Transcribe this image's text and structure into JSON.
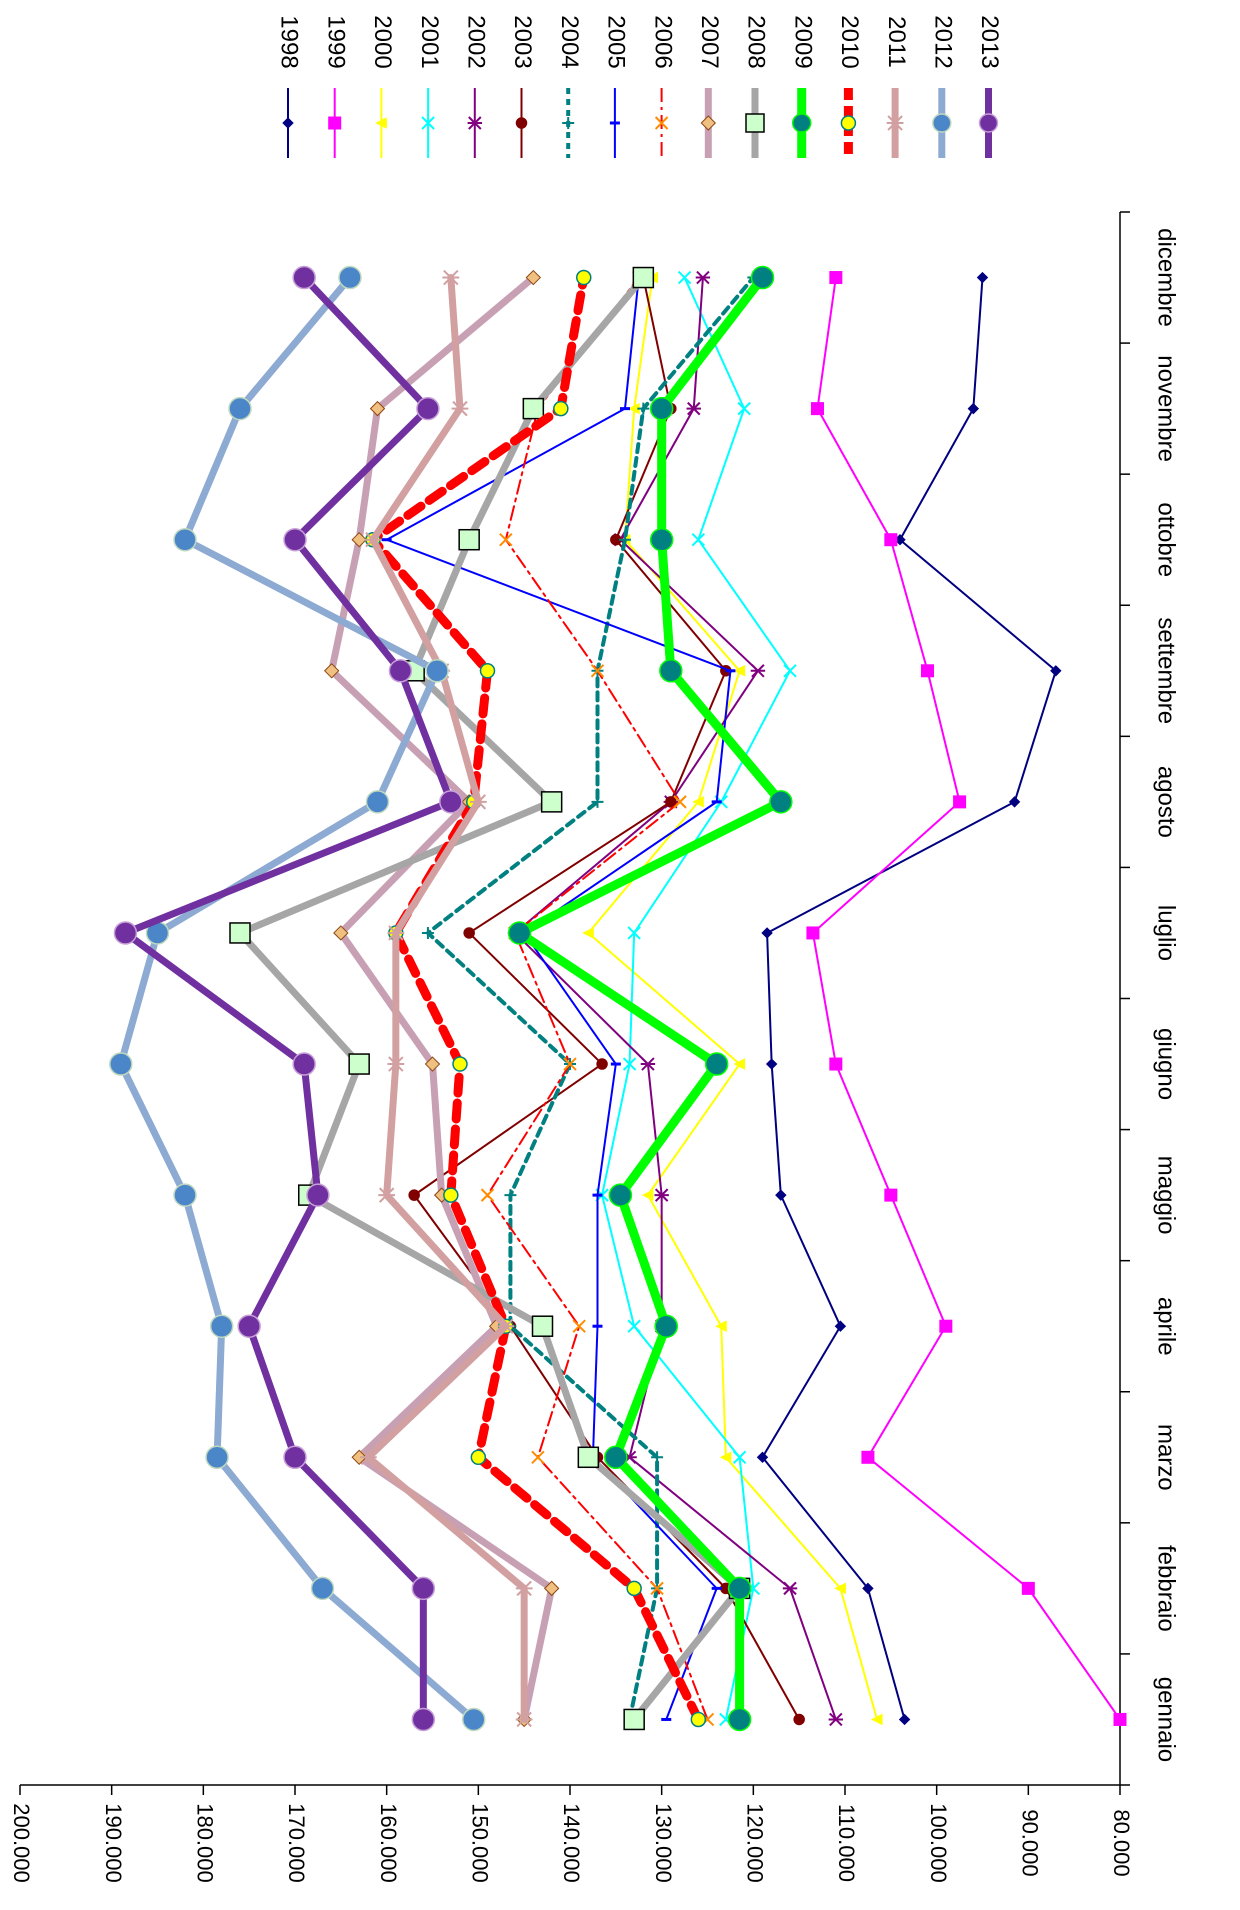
{
  "chart_data": {
    "type": "line",
    "title": "",
    "xlabel": "",
    "ylabel": "",
    "ylim": [
      80,
      200
    ],
    "y_ticks": [
      "80.000",
      "90.000",
      "100.000",
      "110.000",
      "120.000",
      "130.000",
      "140.000",
      "150.000",
      "160.000",
      "170.000",
      "180.000",
      "190.000",
      "200.000"
    ],
    "categories": [
      "gennaio",
      "febbraio",
      "marzo",
      "aprile",
      "maggio",
      "giugno",
      "luglio",
      "agosto",
      "settembre",
      "ottobre",
      "novembre",
      "dicembre"
    ],
    "grid": false,
    "legend_position": "top",
    "series": [
      {
        "name": "1998",
        "color": "#000080",
        "marker": "diamond",
        "dash": "",
        "width": 2,
        "values": [
          103.5,
          107.5,
          119,
          110.5,
          117,
          118,
          118.5,
          91.5,
          87,
          104,
          96,
          95
        ]
      },
      {
        "name": "1999",
        "color": "#FF00FF",
        "marker": "square",
        "dash": "",
        "width": 2,
        "values": [
          80,
          90,
          107.5,
          99,
          105,
          111,
          113.5,
          97.5,
          101,
          105,
          113,
          111
        ]
      },
      {
        "name": "2000",
        "color": "#FFFF00",
        "marker": "triangle",
        "dash": "",
        "width": 2,
        "values": [
          106.5,
          110.5,
          123,
          123.5,
          131.5,
          121.5,
          138,
          126,
          121.5,
          134,
          133,
          131
        ]
      },
      {
        "name": "2001",
        "color": "#00FFFF",
        "marker": "x",
        "dash": "",
        "width": 2,
        "values": [
          123,
          120,
          121.5,
          133,
          136.5,
          133.5,
          133,
          123.5,
          116,
          126,
          121,
          127.5
        ]
      },
      {
        "name": "2002",
        "color": "#800080",
        "marker": "star",
        "dash": "",
        "width": 2,
        "values": [
          111,
          116,
          133.5,
          130,
          130,
          131.5,
          146,
          129,
          119.5,
          134.5,
          126.5,
          125.5
        ]
      },
      {
        "name": "2003",
        "color": "#800000",
        "marker": "circle",
        "dash": "",
        "width": 2,
        "values": [
          115,
          123,
          137,
          146.5,
          157,
          136.5,
          151,
          129,
          123,
          135,
          129,
          132
        ]
      },
      {
        "name": "2004",
        "color": "#008080",
        "marker": "plus",
        "dash": "8,6",
        "width": 4,
        "values": [
          133.5,
          130.5,
          130.5,
          146.5,
          146.5,
          140,
          155.5,
          137,
          137,
          134,
          132,
          120
        ]
      },
      {
        "name": "2005",
        "color": "#0000FF",
        "marker": "dash",
        "dash": "",
        "width": 2,
        "values": [
          129.5,
          124,
          137.5,
          137,
          137,
          135,
          145,
          124,
          122.5,
          160,
          134,
          132.5
        ]
      },
      {
        "name": "2006",
        "color": "#FF0000",
        "marker": "x",
        "dash": "14,5,3,5",
        "width": 2,
        "values": [
          125,
          130.5,
          143.5,
          139,
          149,
          140,
          146,
          128,
          137,
          147,
          143.5,
          132.5
        ]
      },
      {
        "name": "2007",
        "color": "#C8A0B4",
        "marker": "diamond",
        "dash": "",
        "width": 7,
        "values": [
          145,
          142,
          163,
          148,
          154,
          155,
          165,
          151,
          166,
          163,
          161,
          144
        ]
      },
      {
        "name": "2008",
        "color": "#A6A6A6",
        "marker": "square",
        "dash": "",
        "width": 7,
        "values": [
          133,
          121.5,
          138,
          143,
          168.5,
          163,
          176,
          142,
          157,
          151,
          144,
          132
        ]
      },
      {
        "name": "2009",
        "color": "#00FF00",
        "marker": "circle",
        "dash": "",
        "width": 9,
        "values": [
          121.5,
          121.5,
          135,
          129.5,
          134.5,
          124,
          145.5,
          117,
          129,
          130,
          130,
          119
        ]
      },
      {
        "name": "2010",
        "color": "#FF0000",
        "marker": "yellow-circle",
        "dash": "16,10",
        "width": 9,
        "values": [
          126,
          133,
          150,
          147,
          153,
          152,
          159,
          150.5,
          149,
          161.5,
          141,
          138.5
        ]
      },
      {
        "name": "2011",
        "color": "#D2A0A0",
        "marker": "star",
        "dash": "",
        "width": 7,
        "values": [
          145,
          145,
          162,
          147,
          160,
          159,
          159,
          150,
          154,
          161.5,
          152,
          153
        ]
      },
      {
        "name": "2012",
        "color": "#8CAAD2",
        "marker": "circle",
        "dash": "",
        "width": 7,
        "values": [
          150.5,
          167,
          178.5,
          178,
          182,
          189,
          185,
          161,
          154.5,
          182,
          176,
          164
        ]
      },
      {
        "name": "2013",
        "color": "#7030A0",
        "marker": "circle",
        "dash": "",
        "width": 7,
        "values": [
          156,
          156,
          170,
          175,
          167.5,
          169,
          188.5,
          153,
          158.5,
          170,
          155.5,
          169
        ]
      }
    ]
  }
}
